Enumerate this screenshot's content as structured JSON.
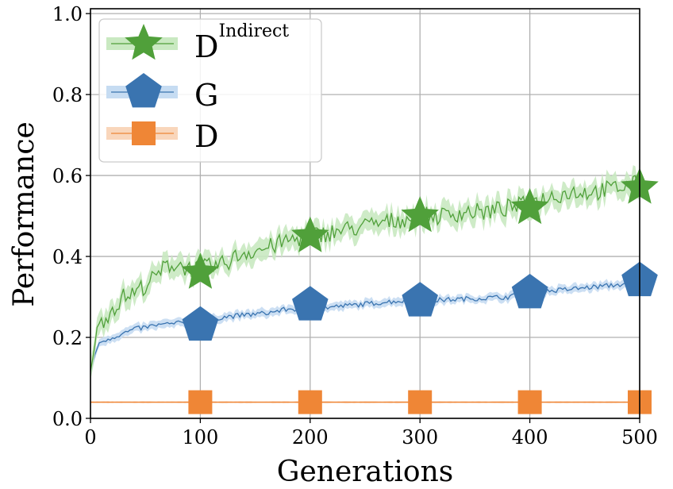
{
  "chart_data": {
    "type": "line",
    "title": "",
    "xlabel": "Generations",
    "ylabel": "Performance",
    "xlim": [
      0,
      500
    ],
    "ylim": [
      0,
      1.012
    ],
    "xticks": [
      "0",
      "100",
      "200",
      "300",
      "400",
      "500"
    ],
    "yticks": [
      "0.0",
      "0.2",
      "0.4",
      "0.6",
      "0.8",
      "1.0"
    ],
    "grid": true,
    "legend_position": "top-left",
    "series": [
      {
        "name": "D",
        "name_superscript": "Indirect",
        "color": "#50a03a",
        "band_color": "#c9e9c1",
        "marker": "star",
        "x": [
          0,
          5,
          10,
          20,
          30,
          40,
          50,
          60,
          70,
          80,
          90,
          100,
          120,
          140,
          160,
          180,
          200,
          220,
          240,
          260,
          280,
          300,
          320,
          340,
          360,
          380,
          400,
          420,
          440,
          460,
          480,
          500
        ],
        "y": [
          0.12,
          0.2,
          0.24,
          0.27,
          0.3,
          0.31,
          0.33,
          0.35,
          0.38,
          0.38,
          0.37,
          0.37,
          0.38,
          0.41,
          0.42,
          0.44,
          0.45,
          0.46,
          0.47,
          0.48,
          0.49,
          0.5,
          0.5,
          0.51,
          0.51,
          0.52,
          0.53,
          0.55,
          0.56,
          0.56,
          0.57,
          0.58
        ],
        "marker_x": [
          100,
          200,
          300,
          400,
          500
        ],
        "marker_y": [
          0.36,
          0.45,
          0.5,
          0.52,
          0.57
        ]
      },
      {
        "name": "G",
        "color": "#3a74b0",
        "band_color": "#c6dcf2",
        "marker": "pentagon",
        "x": [
          0,
          5,
          10,
          20,
          40,
          60,
          80,
          100,
          120,
          140,
          160,
          180,
          200,
          240,
          280,
          300,
          340,
          380,
          400,
          440,
          480,
          500
        ],
        "y": [
          0.11,
          0.17,
          0.19,
          0.2,
          0.22,
          0.23,
          0.235,
          0.24,
          0.25,
          0.255,
          0.26,
          0.27,
          0.27,
          0.28,
          0.29,
          0.29,
          0.295,
          0.3,
          0.31,
          0.32,
          0.33,
          0.335
        ],
        "marker_x": [
          100,
          200,
          300,
          400,
          500
        ],
        "marker_y": [
          0.23,
          0.28,
          0.29,
          0.31,
          0.34
        ]
      },
      {
        "name": "D",
        "color": "#ef8636",
        "band_color": "#f9d6bb",
        "marker": "square",
        "x": [
          0,
          500
        ],
        "y": [
          0.04,
          0.04
        ],
        "marker_x": [
          100,
          200,
          300,
          400,
          500
        ],
        "marker_y": [
          0.04,
          0.04,
          0.04,
          0.04,
          0.04
        ]
      }
    ]
  }
}
